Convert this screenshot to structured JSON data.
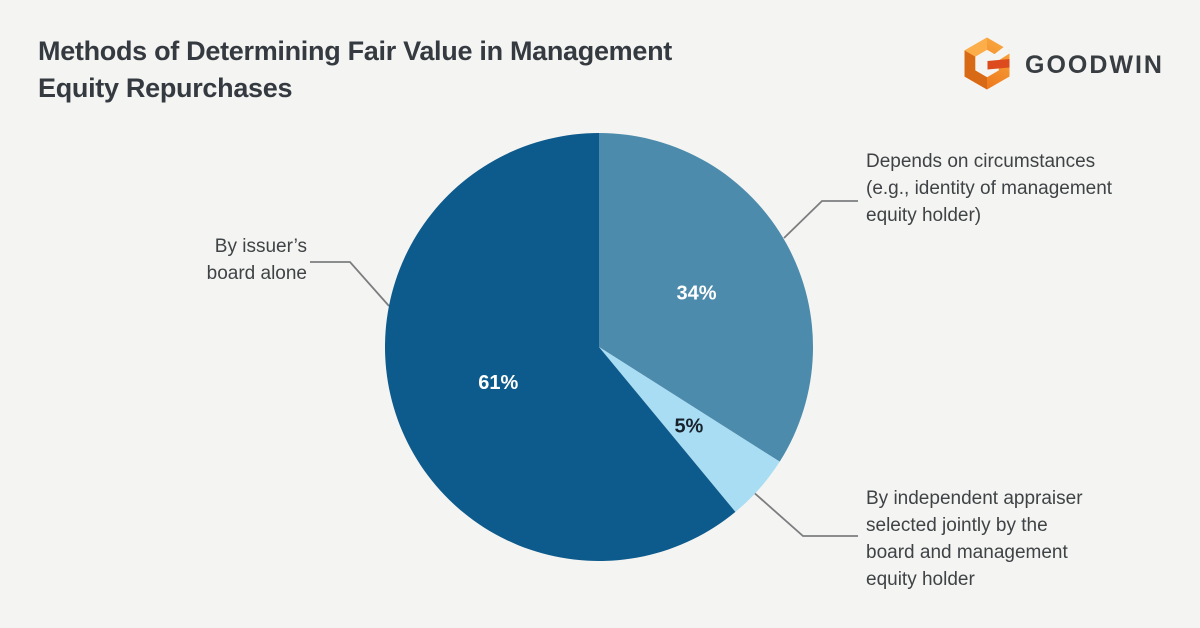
{
  "page": {
    "background_color": "#f4f4f2"
  },
  "header": {
    "title": "Methods of Determining Fair Value in Management\nEquity Repurchases",
    "logo": {
      "wordmark": "GOODWIN",
      "icon": "goodwin-hexagon-g-icon",
      "icon_colors": {
        "orange_light": "#f9a83f",
        "orange_main": "#f08021",
        "orange_dark": "#d96a15",
        "red_bar": "#dc4a1e"
      },
      "wordmark_color": "#383d42"
    }
  },
  "colors": {
    "title_text": "#343a40",
    "callout_text": "#3f4346",
    "leader_line": "#7c7d7f"
  },
  "chart_data": {
    "type": "pie",
    "title": "Methods of Determining Fair Value in Management Equity Repurchases",
    "legend_position": "callouts",
    "start_angle_deg": -90,
    "direction": "clockwise",
    "slices": [
      {
        "label": "Depends on circumstances\n(e.g., identity of management\nequity holder)",
        "value": 34,
        "value_label": "34%",
        "color": "#4d8bac",
        "value_label_color": "#ffffff",
        "label_radius_frac": 0.52
      },
      {
        "label": "By independent appraiser\nselected jointly by the\nboard and management\nequity holder",
        "value": 5,
        "value_label": "5%",
        "color": "#a9ddf3",
        "value_label_color": "#17222b",
        "label_radius_frac": 0.56
      },
      {
        "label": "By issuer’s\nboard alone",
        "value": 61,
        "value_label": "61%",
        "color": "#0d5a8c",
        "value_label_color": "#ffffff",
        "label_radius_frac": 0.5
      }
    ]
  }
}
